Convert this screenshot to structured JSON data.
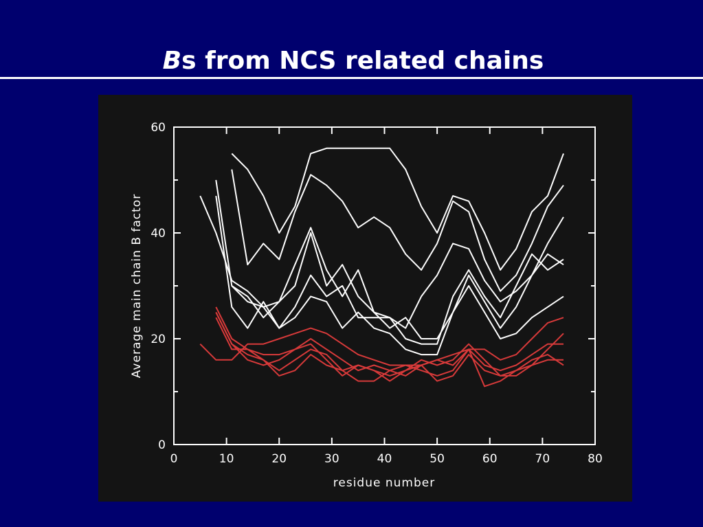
{
  "chart_data": {
    "type": "line",
    "title": {
      "italic": "B",
      "rest": "s from NCS related chains"
    },
    "xlabel": "residue number",
    "ylabel": "Average main chain B factor",
    "x": [
      5,
      8,
      11,
      14,
      17,
      20,
      23,
      26,
      29,
      32,
      35,
      38,
      41,
      44,
      47,
      50,
      53,
      56,
      59,
      62,
      65,
      68,
      71,
      74
    ],
    "series": [
      {
        "color": "#ffffff",
        "values": [
          47,
          40,
          31,
          29,
          26,
          27,
          30,
          40,
          30,
          34,
          28,
          25,
          24,
          20,
          19,
          19,
          28,
          33,
          28,
          24,
          30,
          36,
          33,
          35
        ]
      },
      {
        "color": "#ffffff",
        "values": [
          null,
          50,
          30,
          28,
          24,
          27,
          34,
          41,
          33,
          28,
          33,
          25,
          22,
          24,
          20,
          20,
          25,
          32,
          27,
          22,
          26,
          32,
          38,
          43
        ]
      },
      {
        "color": "#ffffff",
        "values": [
          null,
          47,
          26,
          22,
          27,
          22,
          24,
          28,
          27,
          22,
          25,
          22,
          21,
          18,
          17,
          17,
          25,
          30,
          25,
          20,
          21,
          24,
          26,
          28
        ]
      },
      {
        "color": "#ffffff",
        "values": [
          null,
          null,
          55,
          52,
          47,
          40,
          45,
          55,
          56,
          56,
          56,
          56,
          56,
          52,
          45,
          40,
          47,
          46,
          40,
          33,
          37,
          44,
          47,
          55
        ]
      },
      {
        "color": "#ffffff",
        "values": [
          null,
          null,
          52,
          34,
          38,
          35,
          44,
          51,
          49,
          46,
          41,
          43,
          41,
          36,
          33,
          38,
          46,
          44,
          35,
          29,
          32,
          38,
          45,
          49
        ]
      },
      {
        "color": "#ffffff",
        "values": [
          null,
          null,
          30,
          27,
          26,
          22,
          26,
          32,
          28,
          30,
          24,
          24,
          24,
          22,
          28,
          32,
          38,
          37,
          31,
          27,
          29,
          32,
          36,
          34
        ]
      },
      {
        "color": "#d83a3a",
        "values": [
          19,
          16,
          16,
          19,
          19,
          20,
          21,
          22,
          21,
          19,
          17,
          16,
          15,
          15,
          15,
          16,
          17,
          18,
          18,
          16,
          17,
          20,
          23,
          24
        ]
      },
      {
        "color": "#d83a3a",
        "values": [
          null,
          26,
          20,
          18,
          16,
          14,
          16,
          18,
          17,
          14,
          12,
          12,
          14,
          15,
          14,
          13,
          14,
          18,
          11,
          12,
          14,
          15,
          18,
          21
        ]
      },
      {
        "color": "#d83a3a",
        "values": [
          null,
          25,
          19,
          16,
          15,
          16,
          18,
          19,
          16,
          13,
          15,
          14,
          13,
          14,
          16,
          15,
          16,
          19,
          16,
          13,
          14,
          16,
          17,
          15
        ]
      },
      {
        "color": "#d83a3a",
        "values": [
          null,
          24,
          18,
          18,
          17,
          17,
          18,
          20,
          18,
          16,
          14,
          15,
          14,
          13,
          15,
          16,
          15,
          18,
          15,
          14,
          15,
          17,
          19,
          19
        ]
      },
      {
        "color": "#d83a3a",
        "values": [
          null,
          25,
          19,
          17,
          16,
          13,
          14,
          17,
          15,
          14,
          15,
          14,
          12,
          14,
          15,
          12,
          13,
          17,
          14,
          13,
          13,
          15,
          16,
          16
        ]
      }
    ],
    "xlim": [
      0,
      80
    ],
    "xticks": [
      0,
      10,
      20,
      30,
      40,
      50,
      60,
      70,
      80
    ],
    "ylim": [
      0,
      60
    ],
    "yticks": [
      0,
      20,
      40,
      60
    ],
    "yminor_ticks": [
      10,
      30,
      50
    ]
  }
}
